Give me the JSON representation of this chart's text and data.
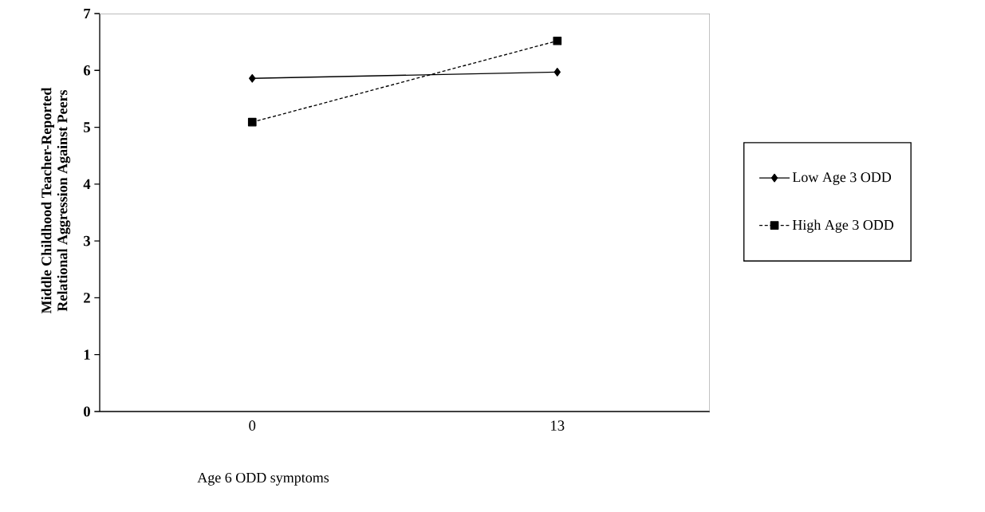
{
  "chart_data": {
    "type": "line",
    "xlabel": "Age 6 ODD symptoms",
    "ylabel": "Middle Childhood Teacher-Reported\nRelational Aggression Against Peers",
    "categories": [
      "0",
      "13"
    ],
    "series": [
      {
        "name": "Low Age 3 ODD",
        "color": "#000000",
        "values": [
          5.86,
          5.97
        ],
        "marker": "diamond",
        "line_style": "solid"
      },
      {
        "name": "High Age 3 ODD",
        "color": "#000000",
        "values": [
          5.09,
          6.52
        ],
        "marker": "square",
        "line_style": "dashed"
      }
    ],
    "ylim": [
      0,
      7
    ],
    "yticks": [
      0,
      1,
      2,
      3,
      4,
      5,
      6,
      7
    ],
    "legend": "right"
  }
}
